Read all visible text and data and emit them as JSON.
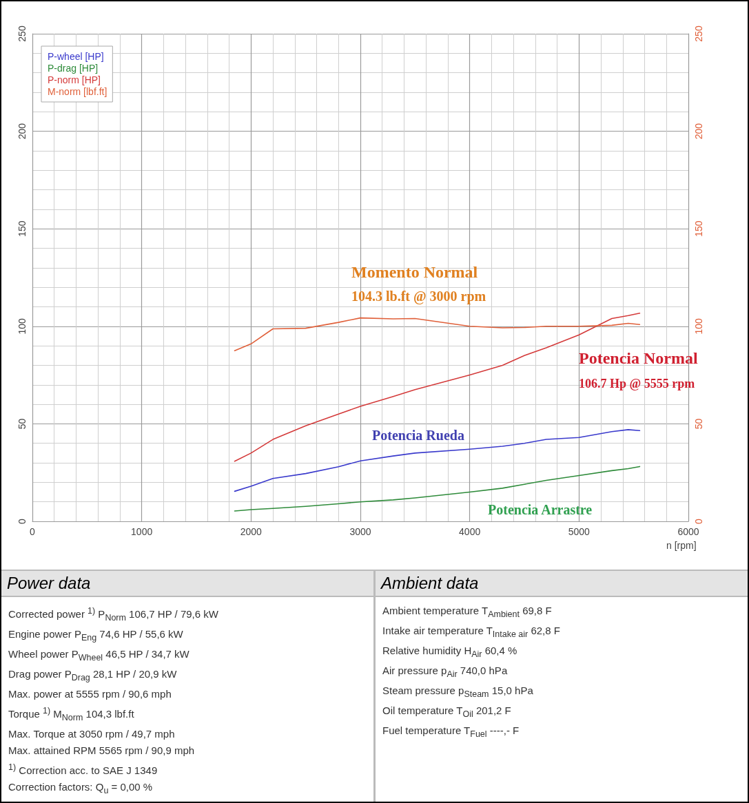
{
  "chart_data": [
    {
      "type": "line",
      "xlabel": "n [rpm]",
      "x": [
        1850,
        2000,
        2200,
        2500,
        2800,
        3000,
        3300,
        3500,
        4000,
        4300,
        4500,
        4700,
        5000,
        5300,
        5450,
        5555
      ],
      "series": [
        {
          "name": "P-wheel [HP]",
          "color": "#3a3acc",
          "values": [
            15.4,
            18,
            22,
            24.5,
            28,
            31,
            33.5,
            35,
            37,
            38.5,
            40,
            42,
            43,
            46,
            47,
            46.5
          ]
        },
        {
          "name": "P-drag [HP]",
          "color": "#2e8b3a",
          "values": [
            5.3,
            6,
            6.6,
            7.7,
            9,
            10,
            11,
            12,
            15,
            17,
            19,
            21,
            23.5,
            26,
            27,
            28.1
          ]
        },
        {
          "name": "P-norm [HP]",
          "color": "#d43a3a",
          "values": [
            30.8,
            35,
            42,
            49,
            55,
            59,
            64,
            67.5,
            75,
            80,
            85,
            89,
            95.6,
            104,
            105.5,
            106.7
          ]
        },
        {
          "name": "M-norm [lbf.ft]",
          "color": "#e0603a",
          "axis": "y2",
          "values": [
            87.5,
            91,
            98.7,
            99,
            102,
            104.3,
            103.8,
            104,
            100,
            99.2,
            99.4,
            100,
            100,
            100.5,
            101.5,
            100.9
          ]
        }
      ],
      "xlim": [
        0,
        6000
      ],
      "xticks": [
        0,
        1000,
        2000,
        3000,
        4000,
        5000,
        6000
      ],
      "ylim": [
        0,
        250
      ],
      "yticks": [
        0,
        50,
        100,
        150,
        200,
        250
      ],
      "y2lim": [
        0,
        250
      ],
      "y2ticks": [
        0,
        50,
        100,
        150,
        200,
        250
      ],
      "grid": true,
      "legend": "top left",
      "marker": "none",
      "line_style": "solid",
      "annotations": [
        "Momento Normal",
        "104.3 lb.ft @ 3000 rpm",
        "Potencia Normal",
        "106.7 Hp @ 5555 rpm",
        "Potencia Rueda",
        "Potencia Arrastre"
      ]
    },
    {
      "type": "other",
      "title": "Power data",
      "annotations": [
        "Corrected power $^{1)}$   P$_{Norm}$   106,7 HP / 79,6 kW",
        "Engine power   P$_{Eng}$   74,6 HP / 55,6 kW",
        "Wheel power   P$_{Wheel}$   46,5 HP / 34,7 kW",
        "Drag power   P$_{Drag}$   28,1 HP / 20,9 kW",
        "Max. power at   5555 rpm / 90,6 mph",
        "Torque $^{1)}$   M$_{Norm}$   104,3 lbf.ft",
        "Max. Torque at   3050 rpm / 49,7 mph",
        "Max. attained RPM   5565 rpm / 90,9 mph",
        "$^{1)}$ Correction acc. to SAE J 1349",
        "Correction factors: Q$_{u}$ =  0,00 %"
      ]
    },
    {
      "type": "other",
      "title": "Ambient data",
      "annotations": [
        "Ambient temperature   T$_{Ambient}$   69,8 F",
        "Intake air temperature   T$_{Intake air}$   62,8 F",
        "Relative humidity   H$_{Air}$   60,4 %",
        "Air pressure   p$_{Air}$   740,0 hPa",
        "Steam pressure   p$_{Steam}$   15,0 hPa",
        "Oil temperature   T$_{Oil}$   201,2 F",
        "Fuel temperature   T$_{Fuel}$   ----,- F"
      ]
    }
  ]
}
